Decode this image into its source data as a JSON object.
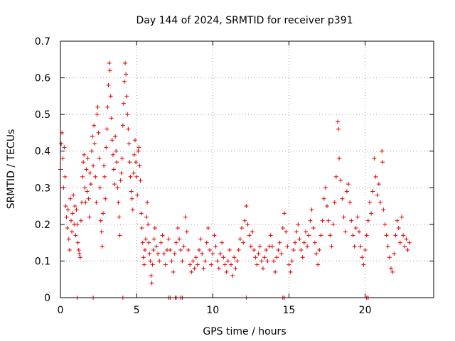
{
  "chart_data": {
    "type": "scatter",
    "title": "Day 144 of 2024, SRMTID for receiver p391",
    "xlabel": "GPS time / hours",
    "ylabel": "SRMTID / TECUs",
    "xlim": [
      0,
      24.5
    ],
    "ylim": [
      0,
      0.7
    ],
    "x_ticks": [
      0,
      5,
      10,
      15,
      20
    ],
    "x_tick_labels": [
      "0",
      "5",
      "10",
      "15",
      "20"
    ],
    "y_ticks": [
      0,
      0.1,
      0.2,
      0.3,
      0.4,
      0.5,
      0.6,
      0.7
    ],
    "y_tick_labels": [
      "0",
      "0.1",
      "0.2",
      "0.3",
      "0.4",
      "0.5",
      "0.6",
      "0.7"
    ],
    "grid": true,
    "marker": "plus",
    "series": [
      {
        "name": "SRMTID",
        "color": "#e00000",
        "points": [
          [
            0.0,
            0.35
          ],
          [
            0.05,
            0.42
          ],
          [
            0.1,
            0.45
          ],
          [
            0.15,
            0.38
          ],
          [
            0.2,
            0.3
          ],
          [
            0.25,
            0.41
          ],
          [
            0.3,
            0.33
          ],
          [
            0.35,
            0.25
          ],
          [
            0.4,
            0.22
          ],
          [
            0.45,
            0.19
          ],
          [
            0.5,
            0.24
          ],
          [
            0.55,
            0.16
          ],
          [
            0.6,
            0.13
          ],
          [
            0.65,
            0.27
          ],
          [
            0.7,
            0.21
          ],
          [
            0.75,
            0.18
          ],
          [
            0.8,
            0.23
          ],
          [
            0.85,
            0.28
          ],
          [
            0.9,
            0.2
          ],
          [
            0.95,
            0.25
          ],
          [
            1.0,
            0.17
          ],
          [
            1.05,
            0.24
          ],
          [
            1.1,
            0.2
          ],
          [
            1.15,
            0.15
          ],
          [
            1.2,
            0.13
          ],
          [
            1.25,
            0.12
          ],
          [
            1.3,
            0.11
          ],
          [
            1.35,
            0.21
          ],
          [
            1.4,
            0.26
          ],
          [
            1.45,
            0.33
          ],
          [
            1.5,
            0.37
          ],
          [
            1.55,
            0.39
          ],
          [
            1.6,
            0.3
          ],
          [
            1.65,
            0.26
          ],
          [
            1.7,
            0.35
          ],
          [
            1.75,
            0.29
          ],
          [
            1.8,
            0.38
          ],
          [
            1.85,
            0.27
          ],
          [
            1.9,
            0.22
          ],
          [
            1.95,
            0.34
          ],
          [
            2.0,
            0.31
          ],
          [
            2.05,
            0.4
          ],
          [
            2.1,
            0.44
          ],
          [
            2.15,
            0.36
          ],
          [
            2.2,
            0.47
          ],
          [
            2.25,
            0.42
          ],
          [
            2.3,
            0.33
          ],
          [
            2.35,
            0.26
          ],
          [
            2.4,
            0.5
          ],
          [
            2.45,
            0.52
          ],
          [
            2.5,
            0.45
          ],
          [
            2.55,
            0.38
          ],
          [
            2.6,
            0.3
          ],
          [
            2.65,
            0.21
          ],
          [
            2.7,
            0.18
          ],
          [
            2.75,
            0.14
          ],
          [
            2.8,
            0.23
          ],
          [
            2.85,
            0.36
          ],
          [
            2.9,
            0.33
          ],
          [
            2.95,
            0.27
          ],
          [
            3.0,
            0.41
          ],
          [
            3.05,
            0.46
          ],
          [
            3.1,
            0.52
          ],
          [
            3.15,
            0.58
          ],
          [
            3.2,
            0.64
          ],
          [
            3.25,
            0.62
          ],
          [
            3.3,
            0.55
          ],
          [
            3.35,
            0.49
          ],
          [
            3.4,
            0.43
          ],
          [
            3.45,
            0.39
          ],
          [
            3.5,
            0.35
          ],
          [
            3.55,
            0.31
          ],
          [
            3.6,
            0.44
          ],
          [
            3.65,
            0.4
          ],
          [
            3.7,
            0.37
          ],
          [
            3.75,
            0.3
          ],
          [
            3.8,
            0.26
          ],
          [
            3.85,
            0.22
          ],
          [
            3.9,
            0.17
          ],
          [
            3.95,
            0.32
          ],
          [
            4.0,
            0.34
          ],
          [
            4.05,
            0.38
          ],
          [
            4.1,
            0.47
          ],
          [
            4.15,
            0.53
          ],
          [
            4.2,
            0.59
          ],
          [
            4.25,
            0.64
          ],
          [
            4.3,
            0.61
          ],
          [
            4.35,
            0.55
          ],
          [
            4.4,
            0.5
          ],
          [
            4.45,
            0.46
          ],
          [
            4.5,
            0.42
          ],
          [
            4.55,
            0.37
          ],
          [
            4.6,
            0.33
          ],
          [
            4.65,
            0.29
          ],
          [
            4.7,
            0.27
          ],
          [
            4.75,
            0.24
          ],
          [
            4.8,
            0.34
          ],
          [
            4.85,
            0.39
          ],
          [
            4.9,
            0.43
          ],
          [
            4.95,
            0.37
          ],
          [
            5.0,
            0.33
          ],
          [
            5.05,
            0.28
          ],
          [
            5.1,
            0.4
          ],
          [
            5.15,
            0.41
          ],
          [
            5.2,
            0.36
          ],
          [
            5.25,
            0.32
          ],
          [
            5.3,
            0.23
          ],
          [
            5.35,
            0.19
          ],
          [
            5.4,
            0.15
          ],
          [
            5.45,
            0.11
          ],
          [
            5.5,
            0.09
          ],
          [
            5.55,
            0.13
          ],
          [
            5.6,
            0.16
          ],
          [
            5.65,
            0.22
          ],
          [
            5.7,
            0.26
          ],
          [
            5.75,
            0.2
          ],
          [
            5.8,
            0.15
          ],
          [
            5.85,
            0.12
          ],
          [
            5.9,
            0.1
          ],
          [
            5.95,
            0.06
          ],
          [
            6.0,
            0.04
          ],
          [
            6.05,
            0.09
          ],
          [
            6.1,
            0.13
          ],
          [
            6.15,
            0.16
          ],
          [
            6.2,
            0.19
          ],
          [
            6.3,
            0.14
          ],
          [
            6.4,
            0.12
          ],
          [
            6.5,
            0.1
          ],
          [
            6.6,
            0.15
          ],
          [
            6.7,
            0.17
          ],
          [
            6.8,
            0.12
          ],
          [
            6.9,
            0.09
          ],
          [
            7.0,
            0.13
          ],
          [
            7.1,
            0.16
          ],
          [
            7.2,
            0.13
          ],
          [
            7.3,
            0.1
          ],
          [
            7.4,
            0.07
          ],
          [
            7.5,
            0.12
          ],
          [
            7.6,
            0.15
          ],
          [
            7.7,
            0.19
          ],
          [
            7.8,
            0.16
          ],
          [
            7.9,
            0.13
          ],
          [
            8.0,
            0.1
          ],
          [
            8.1,
            0.14
          ],
          [
            8.2,
            0.22
          ],
          [
            8.3,
            0.18
          ],
          [
            8.4,
            0.13
          ],
          [
            8.5,
            0.09
          ],
          [
            8.6,
            0.07
          ],
          [
            8.7,
            0.1
          ],
          [
            8.8,
            0.08
          ],
          [
            8.9,
            0.11
          ],
          [
            9.0,
            0.09
          ],
          [
            9.1,
            0.13
          ],
          [
            9.2,
            0.16
          ],
          [
            9.3,
            0.12
          ],
          [
            9.4,
            0.08
          ],
          [
            9.5,
            0.1
          ],
          [
            9.6,
            0.15
          ],
          [
            9.7,
            0.19
          ],
          [
            9.8,
            0.13
          ],
          [
            9.9,
            0.09
          ],
          [
            10.0,
            0.12
          ],
          [
            10.1,
            0.17
          ],
          [
            10.2,
            0.14
          ],
          [
            10.3,
            0.1
          ],
          [
            10.4,
            0.08
          ],
          [
            10.5,
            0.12
          ],
          [
            10.6,
            0.15
          ],
          [
            10.7,
            0.11
          ],
          [
            10.8,
            0.09
          ],
          [
            10.9,
            0.07
          ],
          [
            11.0,
            0.1
          ],
          [
            11.1,
            0.13
          ],
          [
            11.2,
            0.09
          ],
          [
            11.3,
            0.06
          ],
          [
            11.4,
            0.11
          ],
          [
            11.5,
            0.08
          ],
          [
            11.6,
            0.1
          ],
          [
            11.7,
            0.13
          ],
          [
            11.8,
            0.16
          ],
          [
            11.9,
            0.19
          ],
          [
            12.0,
            0.15
          ],
          [
            12.1,
            0.21
          ],
          [
            12.2,
            0.25
          ],
          [
            12.3,
            0.2
          ],
          [
            12.4,
            0.17
          ],
          [
            12.5,
            0.14
          ],
          [
            12.6,
            0.18
          ],
          [
            12.7,
            0.13
          ],
          [
            12.8,
            0.11
          ],
          [
            12.9,
            0.09
          ],
          [
            13.0,
            0.12
          ],
          [
            13.1,
            0.14
          ],
          [
            13.2,
            0.1
          ],
          [
            13.3,
            0.08
          ],
          [
            13.4,
            0.11
          ],
          [
            13.5,
            0.13
          ],
          [
            13.6,
            0.1
          ],
          [
            13.7,
            0.14
          ],
          [
            13.8,
            0.17
          ],
          [
            13.9,
            0.14
          ],
          [
            14.0,
            0.1
          ],
          [
            14.1,
            0.07
          ],
          [
            14.2,
            0.11
          ],
          [
            14.3,
            0.13
          ],
          [
            14.4,
            0.15
          ],
          [
            14.5,
            0.12
          ],
          [
            14.6,
            0.19
          ],
          [
            14.7,
            0.23
          ],
          [
            14.8,
            0.18
          ],
          [
            14.9,
            0.14
          ],
          [
            15.0,
            0.09
          ],
          [
            15.1,
            0.07
          ],
          [
            15.2,
            0.1
          ],
          [
            15.3,
            0.13
          ],
          [
            15.4,
            0.15
          ],
          [
            15.5,
            0.18
          ],
          [
            15.6,
            0.2
          ],
          [
            15.7,
            0.16
          ],
          [
            15.8,
            0.13
          ],
          [
            15.9,
            0.11
          ],
          [
            16.0,
            0.15
          ],
          [
            16.1,
            0.18
          ],
          [
            16.2,
            0.14
          ],
          [
            16.3,
            0.17
          ],
          [
            16.4,
            0.21
          ],
          [
            16.5,
            0.24
          ],
          [
            16.6,
            0.19
          ],
          [
            16.7,
            0.15
          ],
          [
            16.8,
            0.12
          ],
          [
            16.9,
            0.09
          ],
          [
            17.0,
            0.13
          ],
          [
            17.1,
            0.17
          ],
          [
            17.2,
            0.21
          ],
          [
            17.3,
            0.27
          ],
          [
            17.4,
            0.3
          ],
          [
            17.5,
            0.25
          ],
          [
            17.6,
            0.21
          ],
          [
            17.7,
            0.17
          ],
          [
            17.8,
            0.14
          ],
          [
            17.9,
            0.2
          ],
          [
            18.0,
            0.26
          ],
          [
            18.1,
            0.33
          ],
          [
            18.2,
            0.48
          ],
          [
            18.25,
            0.46
          ],
          [
            18.3,
            0.38
          ],
          [
            18.4,
            0.32
          ],
          [
            18.5,
            0.27
          ],
          [
            18.6,
            0.22
          ],
          [
            18.7,
            0.18
          ],
          [
            18.8,
            0.29
          ],
          [
            18.9,
            0.31
          ],
          [
            19.0,
            0.26
          ],
          [
            19.1,
            0.21
          ],
          [
            19.2,
            0.17
          ],
          [
            19.3,
            0.14
          ],
          [
            19.4,
            0.19
          ],
          [
            19.5,
            0.22
          ],
          [
            19.6,
            0.18
          ],
          [
            19.7,
            0.14
          ],
          [
            19.8,
            0.11
          ],
          [
            19.9,
            0.09
          ],
          [
            20.0,
            0.13
          ],
          [
            20.1,
            0.17
          ],
          [
            20.2,
            0.21
          ],
          [
            20.3,
            0.26
          ],
          [
            20.4,
            0.23
          ],
          [
            20.5,
            0.29
          ],
          [
            20.6,
            0.38
          ],
          [
            20.7,
            0.33
          ],
          [
            20.8,
            0.28
          ],
          [
            20.9,
            0.31
          ],
          [
            21.0,
            0.26
          ],
          [
            21.1,
            0.4
          ],
          [
            21.15,
            0.37
          ],
          [
            21.2,
            0.24
          ],
          [
            21.3,
            0.2
          ],
          [
            21.4,
            0.17
          ],
          [
            21.5,
            0.14
          ],
          [
            21.6,
            0.11
          ],
          [
            21.7,
            0.08
          ],
          [
            21.8,
            0.07
          ],
          [
            21.9,
            0.12
          ],
          [
            22.0,
            0.17
          ],
          [
            22.1,
            0.21
          ],
          [
            22.2,
            0.19
          ],
          [
            22.3,
            0.15
          ],
          [
            22.4,
            0.22
          ],
          [
            22.5,
            0.17
          ],
          [
            22.6,
            0.14
          ],
          [
            22.7,
            0.16
          ],
          [
            22.8,
            0.13
          ],
          [
            22.9,
            0.15
          ]
        ]
      },
      {
        "name": "zero-line",
        "color": "#e00000",
        "points": [
          [
            1.1,
            0
          ],
          [
            2.15,
            0
          ],
          [
            4.1,
            0
          ],
          [
            7.1,
            0
          ],
          [
            7.2,
            0
          ],
          [
            7.55,
            0
          ],
          [
            7.6,
            0
          ],
          [
            7.9,
            0
          ],
          [
            8.0,
            0
          ],
          [
            12.2,
            0
          ],
          [
            14.6,
            0
          ],
          [
            14.7,
            0
          ],
          [
            20.1,
            0
          ],
          [
            20.2,
            0
          ]
        ]
      }
    ]
  }
}
